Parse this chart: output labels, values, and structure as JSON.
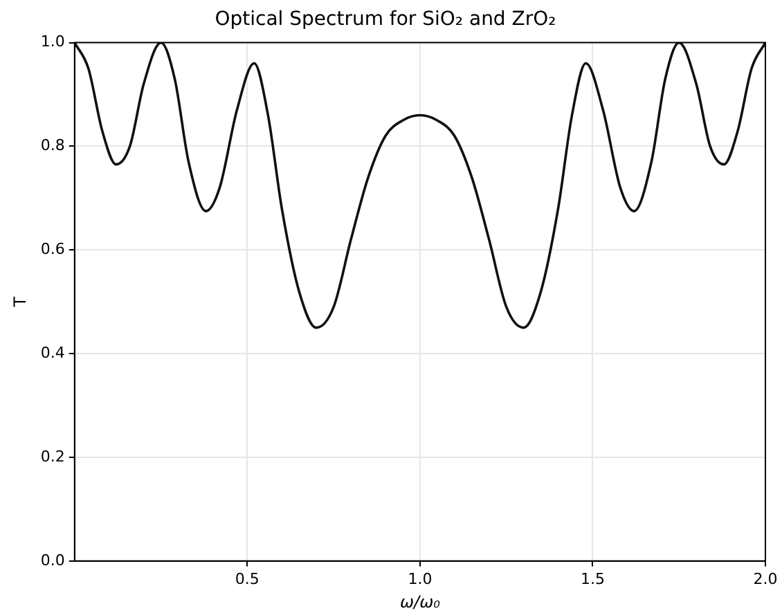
{
  "chart_data": {
    "type": "line",
    "title": "Optical Spectrum for SiO₂ and ZrO₂",
    "xlabel": "ω/ω₀",
    "ylabel": "T",
    "x": [
      0,
      0.04,
      0.08,
      0.12,
      0.16,
      0.2,
      0.25,
      0.29,
      0.33,
      0.38,
      0.42,
      0.47,
      0.52,
      0.56,
      0.6,
      0.65,
      0.7,
      0.75,
      0.8,
      0.85,
      0.9,
      0.95,
      1.0,
      1.05,
      1.1,
      1.15,
      1.2,
      1.25,
      1.3,
      1.35,
      1.4,
      1.44,
      1.48,
      1.53,
      1.58,
      1.62,
      1.67,
      1.71,
      1.75,
      1.8,
      1.84,
      1.88,
      1.92,
      1.96,
      2.0
    ],
    "series": [
      {
        "color": "#111111",
        "values": [
          1.0,
          0.95,
          0.83,
          0.765,
          0.8,
          0.92,
          1.0,
          0.93,
          0.77,
          0.675,
          0.72,
          0.87,
          0.96,
          0.86,
          0.68,
          0.52,
          0.45,
          0.49,
          0.62,
          0.74,
          0.82,
          0.85,
          0.86,
          0.85,
          0.82,
          0.74,
          0.62,
          0.49,
          0.45,
          0.52,
          0.68,
          0.86,
          0.96,
          0.87,
          0.72,
          0.675,
          0.77,
          0.93,
          1.0,
          0.92,
          0.8,
          0.765,
          0.83,
          0.95,
          1.0
        ]
      }
    ],
    "xlim": [
      0,
      2
    ],
    "xticks": [
      {
        "value": 0.5,
        "label": "0.5"
      },
      {
        "value": 1,
        "label": "1.0"
      },
      {
        "value": 1.5,
        "label": "1.5"
      },
      {
        "value": 2,
        "label": "2.0"
      }
    ],
    "ylim": [
      0,
      1
    ],
    "yticks": [
      {
        "value": 0,
        "label": "0.0"
      },
      {
        "value": 0.2,
        "label": "0.2"
      },
      {
        "value": 0.4,
        "label": "0.4"
      },
      {
        "value": 0.6,
        "label": "0.6"
      },
      {
        "value": 0.8,
        "label": "0.8"
      },
      {
        "value": 1,
        "label": "1.0"
      }
    ],
    "grid": true,
    "legend": false,
    "marker": "none",
    "line_style": "solid"
  }
}
